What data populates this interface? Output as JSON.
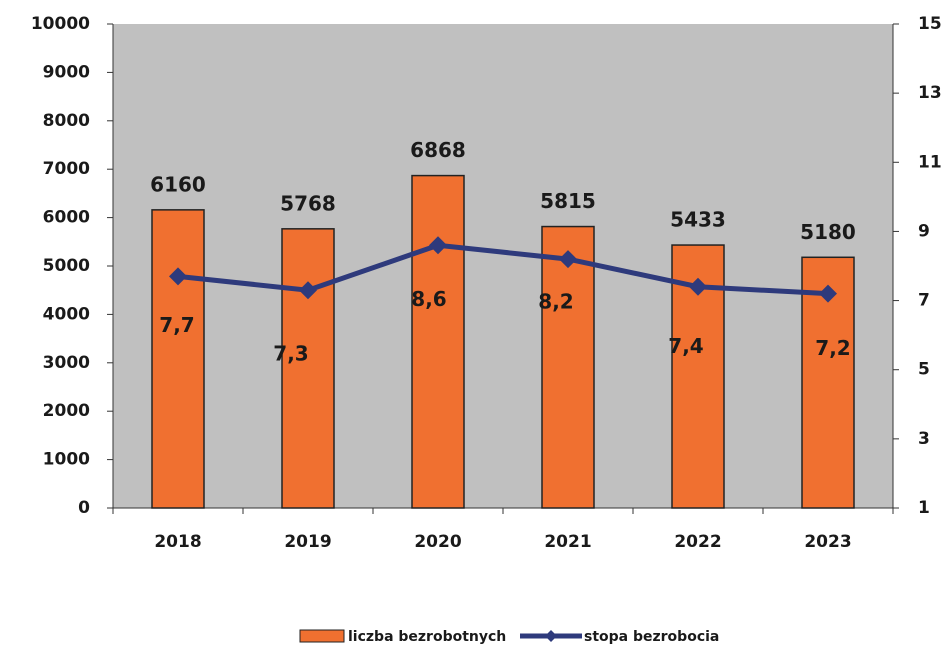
{
  "chart_data": {
    "type": "bar",
    "categories": [
      "2018",
      "2019",
      "2020",
      "2021",
      "2022",
      "2023"
    ],
    "series": [
      {
        "name": "liczba bezrobotnych",
        "type": "bar",
        "color": "#f07030",
        "values": [
          6160,
          5768,
          6868,
          5815,
          5433,
          5180
        ]
      },
      {
        "name": "stopa bezrobocia",
        "type": "line",
        "color": "#2e3a7c",
        "axis": "y2",
        "values": [
          7.7,
          7.3,
          8.6,
          8.2,
          7.4,
          7.2
        ],
        "value_labels": [
          "7,7",
          "7,3",
          "8,6",
          "8,2",
          "7,4",
          "7,2"
        ]
      }
    ],
    "ylim": [
      0,
      10000
    ],
    "yticks": [
      0,
      1000,
      2000,
      3000,
      4000,
      5000,
      6000,
      7000,
      8000,
      9000,
      10000
    ],
    "y2lim": [
      1,
      15
    ],
    "y2ticks": [
      1,
      3,
      5,
      7,
      9,
      11,
      13,
      15
    ],
    "plot_background": "#c0c0c0",
    "legend": "bottom"
  }
}
